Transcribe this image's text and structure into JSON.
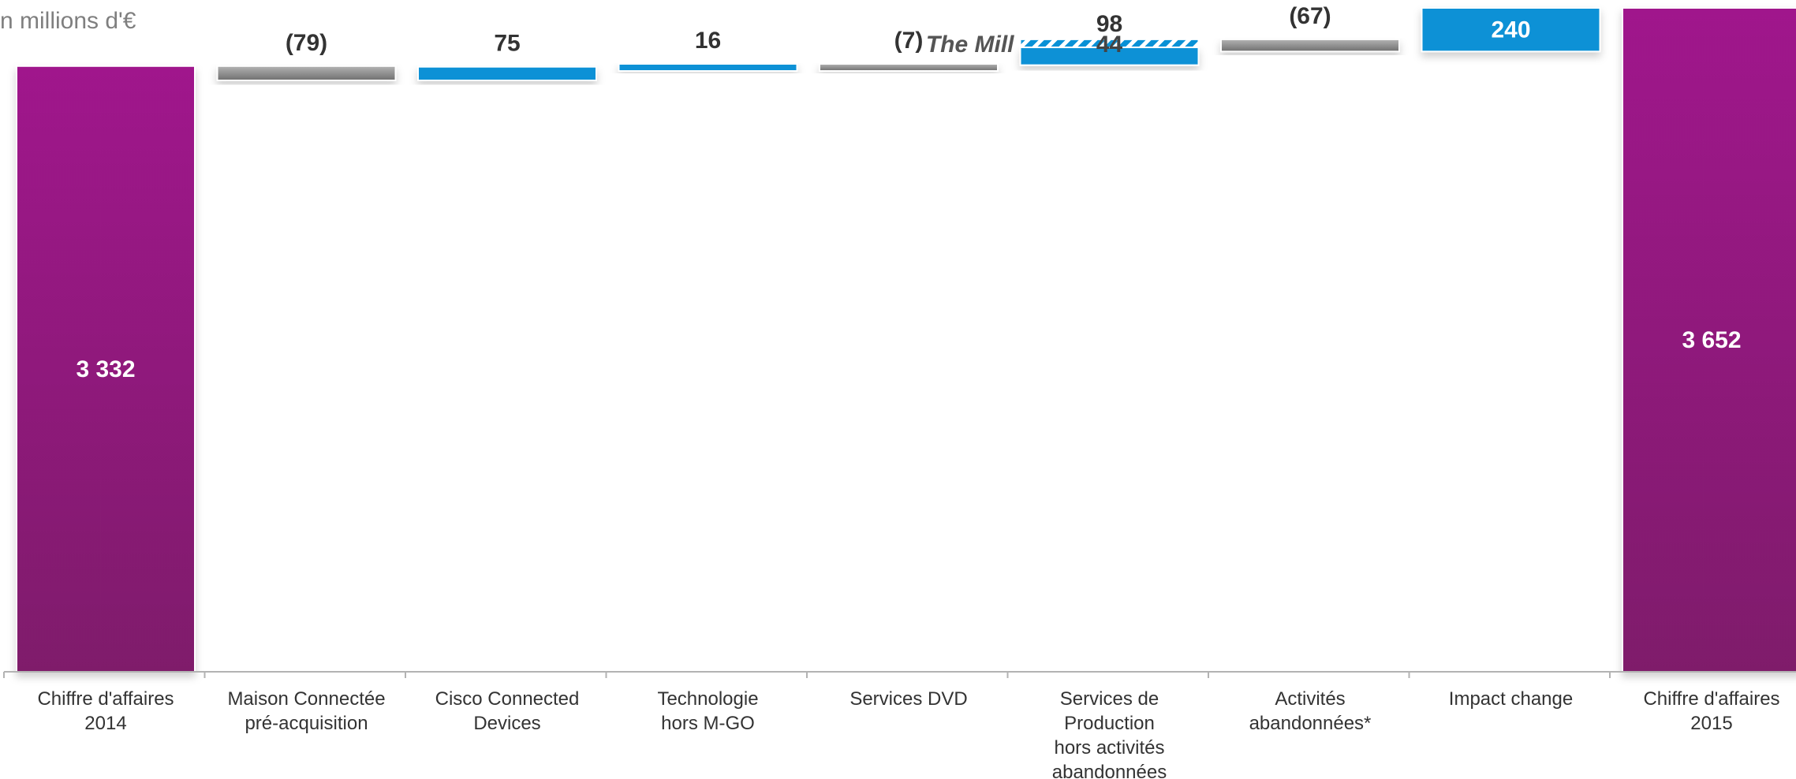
{
  "unit_label": "n millions d'€",
  "colors": {
    "total": "#a0198c",
    "total_dark": "#7f1a6b",
    "increase": "#0891d6",
    "decrease_top": "#b4b4b4",
    "decrease_bottom": "#6f6f6f",
    "hatch": "#0891d6",
    "axis": "#b3b3b3"
  },
  "chart_data": {
    "type": "bar",
    "subtype": "waterfall",
    "unit": "millions d'€",
    "categories": [
      [
        "Chiffre d'affaires",
        "2014"
      ],
      [
        "Maison Connectée",
        "pré-acquisition"
      ],
      [
        "Cisco Connected",
        "Devices"
      ],
      [
        "Technologie",
        "hors M-GO"
      ],
      [
        "Services DVD"
      ],
      [
        "Services de",
        "Production",
        "hors activités",
        "abandonnées"
      ],
      [
        "Activités",
        "abandonnées*"
      ],
      [
        "Impact change"
      ],
      [
        "Chiffre d'affaires",
        "2015"
      ]
    ],
    "steps": [
      {
        "kind": "total",
        "value": 3332,
        "label": "3 332"
      },
      {
        "kind": "delta",
        "value": -79,
        "label": "(79)"
      },
      {
        "kind": "delta",
        "value": 75,
        "label": "75"
      },
      {
        "kind": "delta",
        "value": 16,
        "label": "16"
      },
      {
        "kind": "delta",
        "value": -7,
        "label": "(7)"
      },
      {
        "kind": "delta",
        "value": 98,
        "label": "98",
        "stacked": {
          "value": 44,
          "label": "44",
          "name": "The Mill"
        }
      },
      {
        "kind": "delta",
        "value": -67,
        "label": "(67)"
      },
      {
        "kind": "delta",
        "value": 240,
        "label": "240"
      },
      {
        "kind": "total",
        "value": 3652,
        "label": "3 652"
      }
    ]
  }
}
